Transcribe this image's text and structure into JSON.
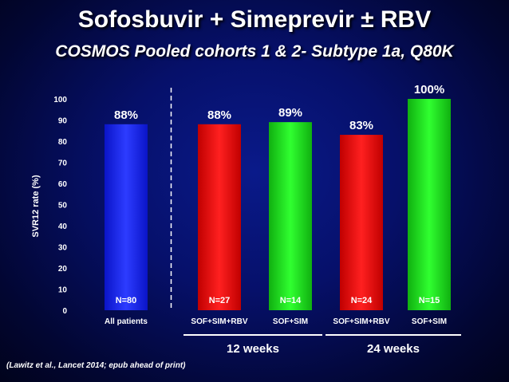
{
  "header": {
    "title": "Sofosbuvir + Simeprevir ± RBV",
    "subtitle": "COSMOS Pooled cohorts 1 & 2- Subtype 1a, Q80K"
  },
  "footer": {
    "citation": "(Lawitz et al., Lancet 2014; epub ahead of print)"
  },
  "chart_data": {
    "type": "bar",
    "ylabel": "SVR12 rate (%)",
    "ylim": [
      0,
      100
    ],
    "yticks": [
      0,
      10,
      20,
      30,
      40,
      50,
      60,
      70,
      80,
      90,
      100
    ],
    "grid": false,
    "categories": [
      "All patients",
      "SOF+SIM+RBV",
      "SOF+SIM",
      "SOF+SIM+RBV",
      "SOF+SIM"
    ],
    "values": [
      88,
      88,
      89,
      83,
      100
    ],
    "value_labels": [
      "88%",
      "88%",
      "89%",
      "83%",
      "100%"
    ],
    "n_labels": [
      "N=80",
      "N=27",
      "N=14",
      "N=24",
      "N=15"
    ],
    "colors": [
      "#1f2bff",
      "#ff1010",
      "#19e019",
      "#ff1010",
      "#19e019"
    ],
    "groups": [
      {
        "label": "12 weeks",
        "categories": [
          1,
          2
        ]
      },
      {
        "label": "24 weeks",
        "categories": [
          3,
          4
        ]
      }
    ],
    "separator_after_category": 0
  }
}
